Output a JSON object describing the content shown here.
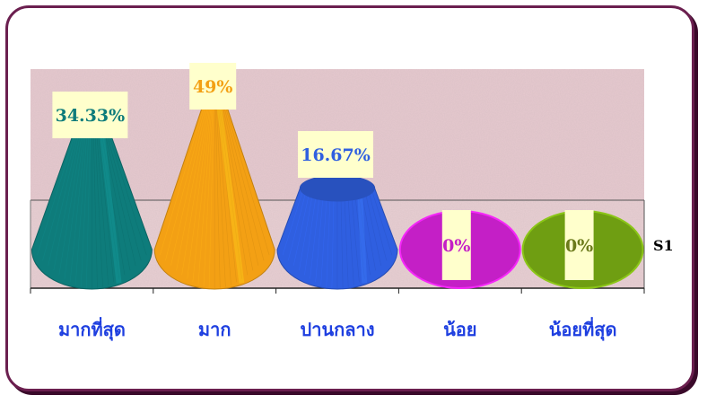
{
  "chart_data": {
    "type": "bar",
    "style": "3d-cone",
    "categories": [
      "มากที่สุด",
      "มาก",
      "ปานกลาง",
      "น้อย",
      "น้อยที่สุด"
    ],
    "series": [
      {
        "name": "S1",
        "values": [
          34.33,
          49,
          16.67,
          0,
          0
        ]
      }
    ],
    "data_labels": [
      "34.33%",
      "49%",
      "16.67%",
      "0%",
      "0%"
    ],
    "colors": [
      "#0e7c7b",
      "#f3a014",
      "#2f5fe0",
      "#c41fc6",
      "#6f9e12"
    ],
    "label_colors": [
      "#0e7c7b",
      "#f3a014",
      "#2f5fe0",
      "#c41fc6",
      "#6b7a1a"
    ],
    "category_label_color": "#1e3fe0",
    "ylim": [
      0,
      60
    ],
    "grid": false
  }
}
